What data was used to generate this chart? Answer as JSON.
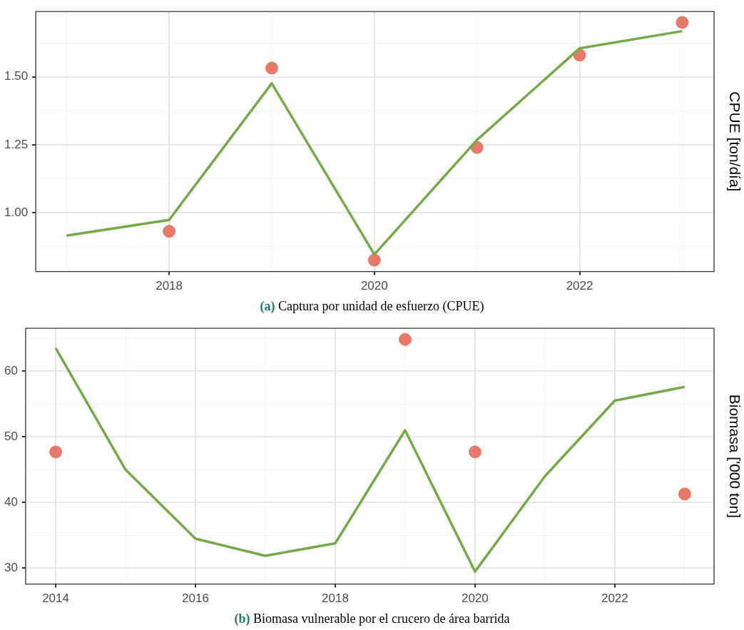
{
  "chart_data": [
    {
      "type": "line",
      "title": "(a) Captura por unidad de esfuerzo (CPUE)",
      "ylabel": "CPUE [ton/día]",
      "x": [
        2017,
        2018,
        2019,
        2020,
        2021,
        2022,
        2023
      ],
      "series": [
        {
          "type": "line",
          "color": "#77a84a",
          "marker": "none",
          "values": [
            0.916,
            0.974,
            1.476,
            0.847,
            1.268,
            1.605,
            1.668
          ]
        },
        {
          "type": "scatter",
          "color": "#e8786a",
          "marker": "circle",
          "x": [
            2018,
            2019,
            2020,
            2021,
            2022,
            2023
          ],
          "values": [
            0.932,
            1.532,
            0.826,
            1.24,
            1.58,
            1.7
          ]
        }
      ],
      "xlim": [
        2016.7,
        2023.31
      ],
      "xticks": [
        {
          "value": 2017,
          "label": null
        },
        2018,
        {
          "value": 2019,
          "label": null
        },
        2020,
        {
          "value": 2021,
          "label": null
        },
        2022,
        {
          "value": 2023,
          "label": null
        }
      ],
      "ylim": [
        0.784,
        1.74
      ],
      "yticks": [
        {
          "value": 0.875,
          "label": null
        },
        {
          "value": 1.0,
          "label": "1.00"
        },
        {
          "value": 1.125,
          "label": null
        },
        {
          "value": 1.25,
          "label": "1.25"
        },
        {
          "value": 1.375,
          "label": null
        },
        {
          "value": 1.5,
          "label": "1.50"
        },
        {
          "value": 1.625,
          "label": null
        }
      ],
      "grid": true,
      "legend": false
    },
    {
      "type": "line",
      "title": "(b) Biomasa vulnerable por el crucero de área barrida",
      "ylabel": "Biomasa ['000 ton]",
      "x": [
        2014,
        2015,
        2016,
        2017,
        2018,
        2019,
        2020,
        2021,
        2022,
        2023
      ],
      "series": [
        {
          "type": "line",
          "color": "#77a84a",
          "marker": "none",
          "values": [
            63.5,
            45.0,
            34.5,
            31.9,
            33.8,
            51.0,
            29.5,
            44.0,
            55.5,
            57.6
          ]
        },
        {
          "type": "scatter",
          "color": "#e8786a",
          "marker": "circle",
          "x": [
            2014,
            2019,
            2020,
            2023
          ],
          "values": [
            47.7,
            64.8,
            47.7,
            41.3
          ]
        }
      ],
      "xlim": [
        2013.57,
        2023.42
      ],
      "xticks": [
        2014,
        {
          "value": 2015,
          "label": null
        },
        2016,
        {
          "value": 2017,
          "label": null
        },
        2018,
        {
          "value": 2019,
          "label": null
        },
        2020,
        {
          "value": 2021,
          "label": null
        },
        2022,
        {
          "value": 2023,
          "label": null
        }
      ],
      "ylim": [
        27.6,
        66.5
      ],
      "yticks": [
        30,
        {
          "value": 35,
          "label": null
        },
        40,
        {
          "value": 45,
          "label": null
        },
        50,
        {
          "value": 55,
          "label": null
        },
        60,
        {
          "value": 65,
          "label": null
        }
      ],
      "grid": true,
      "legend": false
    }
  ]
}
